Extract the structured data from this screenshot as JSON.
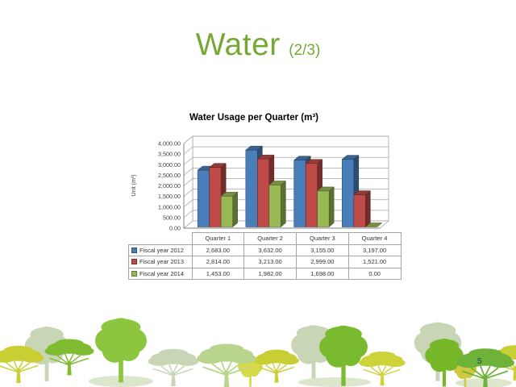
{
  "slide": {
    "title": "Water",
    "title_suffix": "(2/3)",
    "page_number": "5",
    "accent_green": "#76A933"
  },
  "chart_data": {
    "type": "bar",
    "style": "3d-clustered-column",
    "title": "Water Usage per Quarter (m³)",
    "ylabel": "Unit (m³)",
    "categories": [
      "Quarter 1",
      "Quarter 2",
      "Quarter 3",
      "Quarter 4"
    ],
    "series": [
      {
        "name": "Fiscal year 2012",
        "color": "#4A7EBB",
        "values": [
          2683,
          3632,
          3155,
          3197
        ]
      },
      {
        "name": "Fiscal year 2013",
        "color": "#BE4B48",
        "values": [
          2814,
          3213,
          2999,
          1521
        ]
      },
      {
        "name": "Fiscal year 2014",
        "color": "#98B954",
        "values": [
          1453,
          1982,
          1698,
          0
        ]
      }
    ],
    "table_values": [
      [
        "2,683.00",
        "3,632.00",
        "3,155.00",
        "3,197.00"
      ],
      [
        "2,814.00",
        "3,213.00",
        "2,999.00",
        "1,521.00"
      ],
      [
        "1,453.00",
        "1,982.00",
        "1,698.00",
        "0.00"
      ]
    ],
    "ylim": [
      0,
      4000
    ],
    "y_tick_step": 500,
    "y_ticks": [
      "4,000.00",
      "3,500.00",
      "3,000.00",
      "2,500.00",
      "2,000.00",
      "1,500.00",
      "1,000.00",
      "500.00",
      "0.00"
    ],
    "grid": true,
    "legend_position": "table-left"
  }
}
